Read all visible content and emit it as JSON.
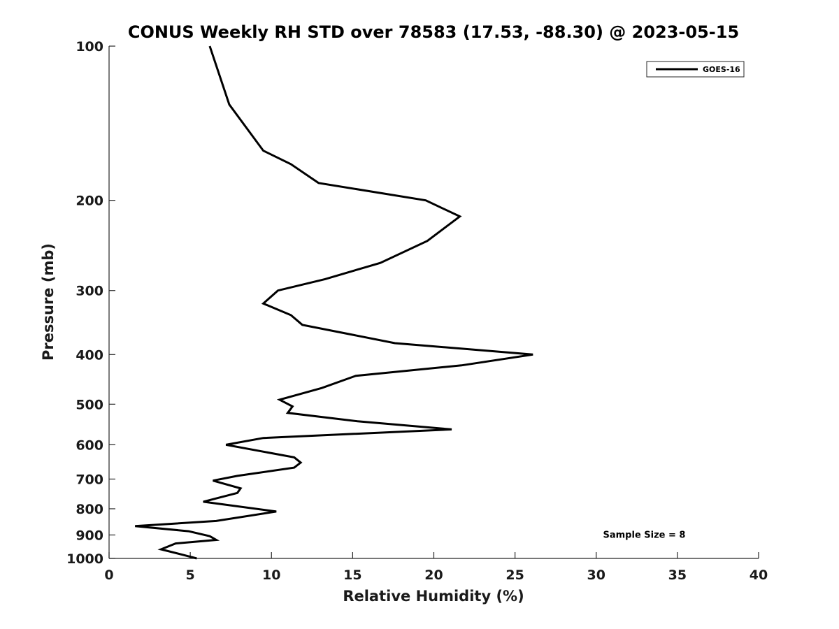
{
  "chart_data": {
    "type": "line",
    "title": "CONUS Weekly RH STD over 78583 (17.53, -88.30) @ 2023-05-15",
    "xlabel": "Relative Humidity (%)",
    "ylabel": "Pressure (mb)",
    "xlim": [
      0,
      40
    ],
    "ylim": [
      100,
      1000
    ],
    "yscale": "log",
    "y_reversed": true,
    "grid": false,
    "legend_position": "top-right",
    "x_ticks": [
      0,
      5,
      10,
      15,
      20,
      25,
      30,
      35,
      40
    ],
    "x_tick_labels": [
      "0",
      "5",
      "10",
      "15",
      "20",
      "25",
      "30",
      "35",
      "40"
    ],
    "y_ticks": [
      100,
      200,
      300,
      400,
      500,
      600,
      700,
      800,
      900,
      1000
    ],
    "y_tick_labels": [
      "100",
      "200",
      "300",
      "400",
      "500",
      "600",
      "700",
      "800",
      "900",
      "1000"
    ],
    "series": [
      {
        "name": "GOES-16",
        "color": "#000000",
        "x": [
          6.2,
          7.4,
          9.5,
          11.2,
          12.9,
          19.5,
          21.6,
          19.6,
          16.7,
          13.3,
          10.4,
          9.5,
          11.2,
          11.9,
          17.6,
          26.1,
          21.7,
          15.2,
          13.1,
          10.5,
          11.3,
          11.0,
          15.3,
          21.1,
          9.5,
          7.2,
          11.4,
          11.8,
          11.4,
          7.9,
          6.4,
          8.1,
          7.9,
          5.8,
          10.3,
          6.6,
          1.6,
          4.9,
          6.2,
          6.6,
          4.1,
          3.2,
          4.6,
          5.4
        ],
        "y": [
          100,
          130,
          160,
          170,
          185,
          200,
          215,
          240,
          265,
          285,
          300,
          318,
          335,
          350,
          380,
          400,
          420,
          440,
          465,
          490,
          505,
          520,
          540,
          560,
          582,
          600,
          635,
          650,
          665,
          690,
          705,
          730,
          745,
          775,
          810,
          845,
          865,
          885,
          905,
          920,
          935,
          960,
          985,
          1000
        ]
      }
    ],
    "annotations": [
      {
        "text": "Sample Size = 8",
        "x": 35.5,
        "y": 900
      }
    ]
  }
}
